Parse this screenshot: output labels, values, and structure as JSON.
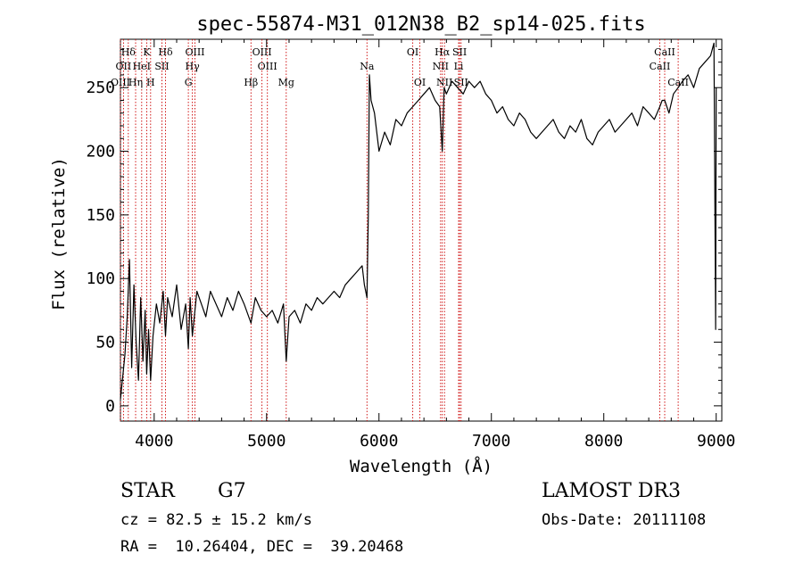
{
  "chart_data": {
    "type": "line",
    "title": "spec-55874-M31_012N38_B2_sp14-025.fits",
    "xlabel": "Wavelength (Å)",
    "ylabel": "Flux (relative)",
    "xlim": [
      3700,
      9050
    ],
    "ylim": [
      -12,
      288
    ],
    "x_ticks": [
      4000,
      5000,
      6000,
      7000,
      8000,
      9000
    ],
    "x_tick_labels": [
      "4000",
      "5000",
      "6000",
      "7000",
      "8000",
      "9000"
    ],
    "y_ticks": [
      0,
      50,
      100,
      150,
      200,
      250
    ],
    "y_tick_labels": [
      "0",
      "50",
      "100",
      "150",
      "200",
      "250"
    ],
    "series": [
      {
        "name": "flux",
        "x": [
          3700,
          3740,
          3760,
          3780,
          3800,
          3820,
          3840,
          3860,
          3880,
          3900,
          3920,
          3933,
          3950,
          3968,
          3990,
          4020,
          4050,
          4080,
          4101,
          4120,
          4160,
          4200,
          4240,
          4280,
          4304,
          4320,
          4340,
          4380,
          4420,
          4460,
          4500,
          4550,
          4600,
          4650,
          4700,
          4750,
          4800,
          4861,
          4900,
          4950,
          5000,
          5050,
          5100,
          5150,
          5175,
          5200,
          5250,
          5300,
          5350,
          5400,
          5450,
          5500,
          5550,
          5600,
          5650,
          5700,
          5750,
          5800,
          5850,
          5870,
          5893,
          5905,
          5915,
          5930,
          5960,
          6000,
          6050,
          6100,
          6150,
          6200,
          6250,
          6300,
          6350,
          6400,
          6450,
          6500,
          6540,
          6563,
          6580,
          6600,
          6650,
          6700,
          6750,
          6800,
          6850,
          6900,
          6950,
          7000,
          7050,
          7100,
          7150,
          7200,
          7250,
          7300,
          7350,
          7400,
          7450,
          7500,
          7550,
          7600,
          7650,
          7700,
          7750,
          7800,
          7850,
          7900,
          7950,
          8000,
          8050,
          8100,
          8150,
          8200,
          8250,
          8300,
          8350,
          8400,
          8450,
          8498,
          8520,
          8542,
          8580,
          8620,
          8662,
          8700,
          8750,
          8800,
          8850,
          8900,
          8950,
          8980,
          8995,
          9000
        ],
        "y": [
          5,
          40,
          70,
          115,
          30,
          95,
          50,
          20,
          85,
          35,
          75,
          25,
          60,
          20,
          55,
          80,
          65,
          90,
          55,
          85,
          70,
          95,
          60,
          80,
          45,
          85,
          55,
          90,
          80,
          70,
          90,
          80,
          70,
          85,
          75,
          90,
          80,
          65,
          85,
          75,
          70,
          75,
          65,
          80,
          35,
          70,
          75,
          65,
          80,
          75,
          85,
          80,
          85,
          90,
          85,
          95,
          100,
          105,
          110,
          95,
          85,
          150,
          260,
          240,
          230,
          200,
          215,
          205,
          225,
          220,
          230,
          235,
          240,
          245,
          250,
          240,
          235,
          200,
          250,
          245,
          255,
          250,
          245,
          255,
          250,
          255,
          245,
          240,
          230,
          235,
          225,
          220,
          230,
          225,
          215,
          210,
          215,
          220,
          225,
          215,
          210,
          220,
          215,
          225,
          210,
          205,
          215,
          220,
          225,
          215,
          220,
          225,
          230,
          220,
          235,
          230,
          225,
          235,
          240,
          240,
          230,
          245,
          250,
          255,
          260,
          250,
          265,
          270,
          275,
          285,
          60,
          250
        ]
      }
    ],
    "lines": [
      {
        "label": "Hδ",
        "wave": 3770,
        "row": 1
      },
      {
        "label": "OII",
        "wave": 3727,
        "row": 2
      },
      {
        "label": "OIII",
        "wave": 3700,
        "row": 3
      },
      {
        "label": "K",
        "wave": 3934,
        "row": 1
      },
      {
        "label": "HeI",
        "wave": 3889,
        "row": 2
      },
      {
        "label": "Hη",
        "wave": 3835,
        "row": 3
      },
      {
        "label": "SII",
        "wave": 4069,
        "row": 2
      },
      {
        "label": "H",
        "wave": 3968,
        "row": 3
      },
      {
        "label": "Hδ",
        "wave": 4101,
        "row": 1
      },
      {
        "label": "OIII",
        "wave": 4363,
        "row": 1
      },
      {
        "label": "Hγ",
        "wave": 4340,
        "row": 2
      },
      {
        "label": "G",
        "wave": 4304,
        "row": 3
      },
      {
        "label": "OIII",
        "wave": 4959,
        "row": 1
      },
      {
        "label": "OIII",
        "wave": 5007,
        "row": 2
      },
      {
        "label": "Hβ",
        "wave": 4861,
        "row": 3
      },
      {
        "label": "Mg",
        "wave": 5175,
        "row": 3
      },
      {
        "label": "Na",
        "wave": 5893,
        "row": 2
      },
      {
        "label": "OI",
        "wave": 6300,
        "row": 1
      },
      {
        "label": "OI",
        "wave": 6364,
        "row": 3
      },
      {
        "label": "Hα",
        "wave": 6563,
        "row": 1
      },
      {
        "label": "SII",
        "wave": 6717,
        "row": 1
      },
      {
        "label": "NII",
        "wave": 6548,
        "row": 2
      },
      {
        "label": "Li",
        "wave": 6708,
        "row": 2
      },
      {
        "label": "NII",
        "wave": 6583,
        "row": 3
      },
      {
        "label": "SII",
        "wave": 6731,
        "row": 3
      },
      {
        "label": "CaII",
        "wave": 8542,
        "row": 1
      },
      {
        "label": "CaII",
        "wave": 8498,
        "row": 2
      },
      {
        "label": "CaII",
        "wave": 8662,
        "row": 3
      }
    ]
  },
  "info": {
    "object_type": "STAR",
    "subclass": "G7",
    "survey": "LAMOST DR3",
    "cz": "cz = 82.5 ± 15.2 km/s",
    "obs_date": "Obs-Date: 20111108",
    "coords": "RA =  10.26404, DEC =  39.20468"
  },
  "colors": {
    "spectrum": "#000000",
    "line_markers": "#cc0000",
    "text": "#000000"
  }
}
